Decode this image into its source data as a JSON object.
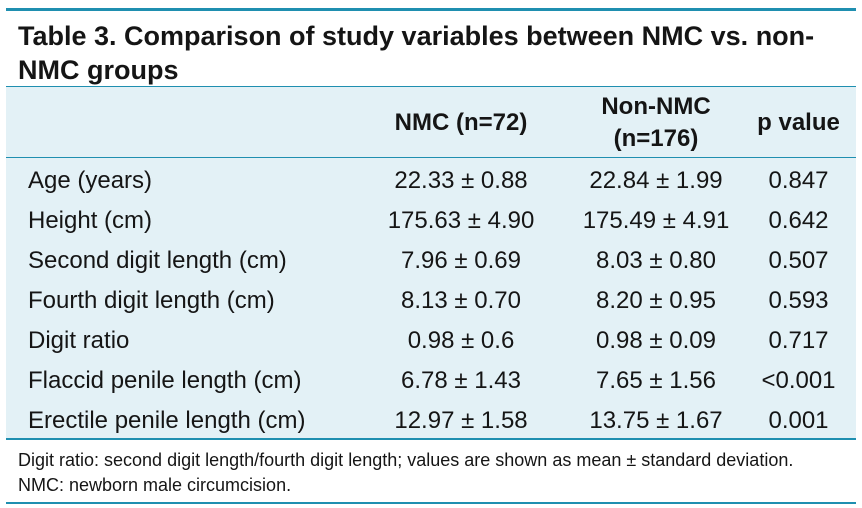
{
  "table": {
    "title": "Table 3. Comparison of study variables between NMC vs. non-NMC groups",
    "headers": [
      "",
      "NMC (n=72)",
      "Non-NMC (n=176)",
      "p value"
    ],
    "rows": [
      [
        "Age (years)",
        "22.33 ± 0.88",
        "22.84 ± 1.99",
        "0.847"
      ],
      [
        "Height (cm)",
        "175.63 ± 4.90",
        "175.49 ± 4.91",
        "0.642"
      ],
      [
        "Second digit length (cm)",
        "7.96 ± 0.69",
        "8.03 ± 0.80",
        "0.507"
      ],
      [
        "Fourth digit length (cm)",
        "8.13 ± 0.70",
        "8.20 ± 0.95",
        "0.593"
      ],
      [
        "Digit ratio",
        "0.98 ± 0.6",
        "0.98 ± 0.09",
        "0.717"
      ],
      [
        "Flaccid penile length (cm)",
        "6.78 ± 1.43",
        "7.65 ± 1.56",
        "<0.001"
      ],
      [
        "Erectile penile length (cm)",
        "12.97 ± 1.58",
        "13.75 ± 1.67",
        "0.001"
      ]
    ],
    "footnote": "Digit ratio: second digit length/fourth digit length; values are shown as mean ± standard deviation. NMC: newborn male circumcision.",
    "colors": {
      "accent": "#1f8fb0",
      "table_bg": "#e3f1f6"
    }
  }
}
